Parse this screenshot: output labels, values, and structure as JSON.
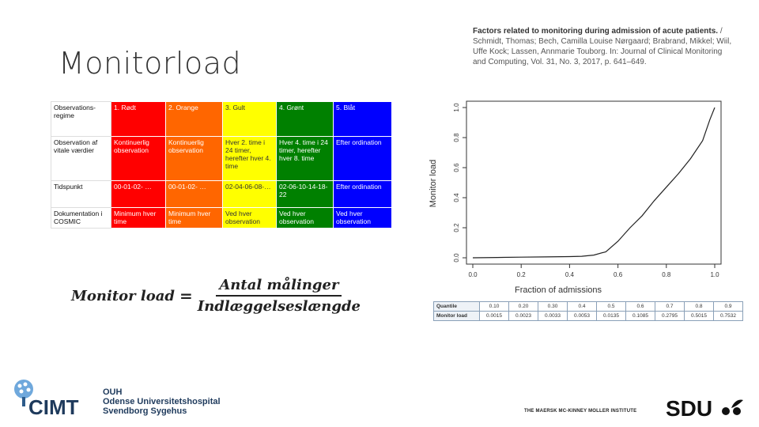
{
  "slide": {
    "title": "Monitorload",
    "citation": {
      "bold": "Factors related to monitoring during admission of acute patients.",
      "rest": " / Schmidt, Thomas; Bech, Camilla Louise Nørgaard; Brabrand, Mikkel; Wiil, Uffe Kock; Lassen, Annmarie Touborg. In: Journal of Clinical Monitoring and Computing, Vol. 31, No. 3, 2017, p. 641–649."
    }
  },
  "triage_table": {
    "colors": [
      "#ff0000",
      "#ff6600",
      "#ffff00",
      "#008000",
      "#0000ff"
    ],
    "header": [
      "Observations-regime",
      "1. Rødt",
      "2. Orange",
      "3. Gult",
      "4. Grønt",
      "5. Blåt"
    ],
    "rows": [
      [
        "Observation af vitale værdier",
        "Kontinuerlig observation",
        "Kontinuerlig observation",
        "Hver 2. time i 24 timer, herefter hver 4. time",
        "Hver 4. time i 24 timer, herefter hver 8. time",
        "Efter ordination"
      ],
      [
        "Tidspunkt",
        "00-01-02- …",
        "00-01-02- …",
        "02-04-06-08-…",
        "02-06-10-14-18-22",
        "Efter ordination"
      ],
      [
        "Dokumentation i COSMIC",
        "Minimum hver time",
        "Minimum hver time",
        "Ved hver observation",
        "Ved hver observation",
        "Ved hver observation"
      ]
    ]
  },
  "formula": {
    "lhs": "Monitor load",
    "eq": "=",
    "numerator": "Antal målinger",
    "denominator": "Indlæggelseslængde"
  },
  "chart_data": {
    "type": "line",
    "xlabel": "Fraction of admissions",
    "ylabel": "Monitor load",
    "xlim": [
      0,
      1
    ],
    "ylim": [
      0,
      1
    ],
    "xticks": [
      "0.0",
      "0.2",
      "0.4",
      "0.6",
      "0.8",
      "1.0"
    ],
    "yticks": [
      "0.0",
      "0.2",
      "0.4",
      "0.6",
      "0.8",
      "1.0"
    ],
    "x": [
      0.0,
      0.1,
      0.2,
      0.3,
      0.4,
      0.45,
      0.5,
      0.55,
      0.6,
      0.65,
      0.7,
      0.75,
      0.8,
      0.85,
      0.9,
      0.95,
      0.98,
      1.0
    ],
    "y": [
      0.0,
      0.002,
      0.004,
      0.006,
      0.008,
      0.01,
      0.018,
      0.04,
      0.11,
      0.2,
      0.28,
      0.38,
      0.47,
      0.56,
      0.66,
      0.78,
      0.92,
      1.0
    ]
  },
  "quantile_table": {
    "row1_label": "Quantile",
    "row2_label": "Monitor load",
    "quantiles": [
      "0.10",
      "0.20",
      "0.30",
      "0.4",
      "0.5",
      "0.6",
      "0.7",
      "0.8",
      "0.9"
    ],
    "loads": [
      "0.0015",
      "0.0023",
      "0.0033",
      "0.0053",
      "0.0135",
      "0.1085",
      "0.2795",
      "0.5015",
      "0.7532"
    ]
  },
  "logos": {
    "cimt": "CIMT",
    "ouh_lines": [
      "OUH",
      "Odense Universitetshospital",
      "Svendborg Sygehus"
    ],
    "maersk": "THE MAERSK MC-KINNEY MOLLER INSTITUTE",
    "sdu": "SDU"
  }
}
